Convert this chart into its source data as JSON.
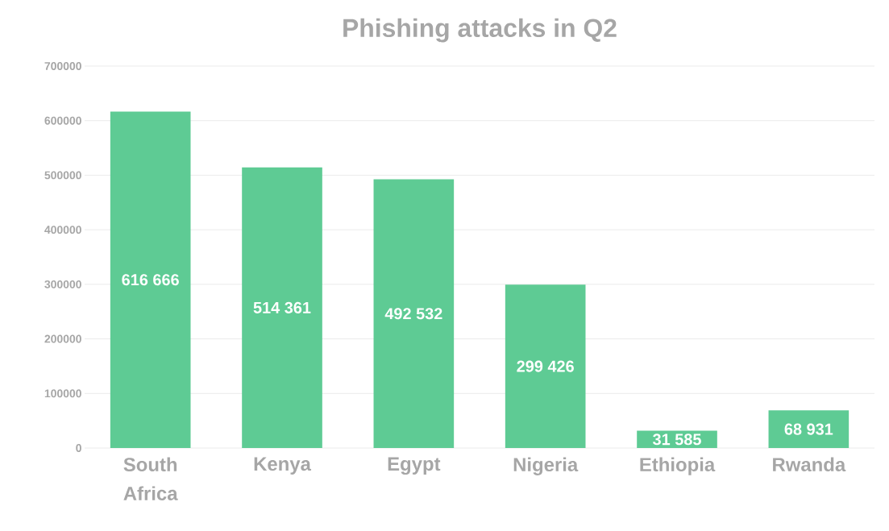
{
  "chart_data": {
    "type": "bar",
    "title": "Phishing attacks in Q2",
    "categories": [
      "South Africa",
      "Kenya",
      "Egypt",
      "Nigeria",
      "Ethiopia",
      "Rwanda"
    ],
    "values": [
      616666,
      514361,
      492532,
      299426,
      31585,
      68931
    ],
    "value_labels": [
      "616 666",
      "514 361",
      "492 532",
      "299 426",
      "31 585",
      "68 931"
    ],
    "color": "#5ecb94",
    "ylim": [
      0,
      700000
    ],
    "yticks": [
      0,
      100000,
      200000,
      300000,
      400000,
      500000,
      600000,
      700000
    ],
    "grid": "y"
  }
}
